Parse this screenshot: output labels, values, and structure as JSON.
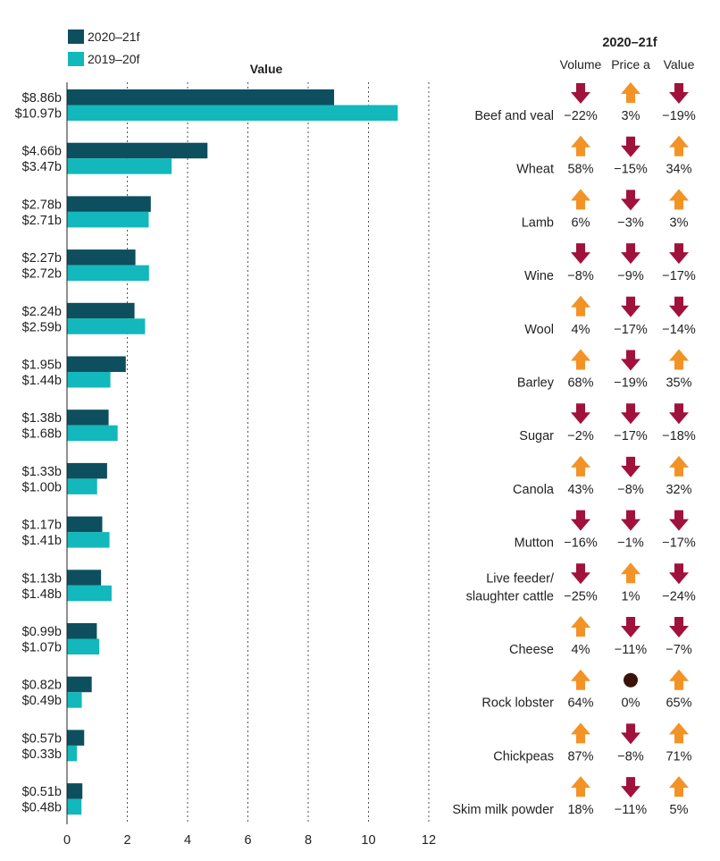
{
  "chart_data": {
    "type": "bar",
    "orientation": "horizontal",
    "title": "Value",
    "xlabel": "",
    "ylabel": "",
    "xlim": [
      0,
      12
    ],
    "xticks": [
      0,
      2,
      4,
      6,
      8,
      10,
      12
    ],
    "grid": true,
    "legend": {
      "position": "top-left",
      "entries": [
        {
          "name": "2020–21f",
          "color": "#0d4f5e"
        },
        {
          "name": "2019–20f",
          "color": "#12b8bb"
        }
      ]
    },
    "categories": [
      "Beef and veal",
      "Wheat",
      "Lamb",
      "Wine",
      "Wool",
      "Barley",
      "Sugar",
      "Canola",
      "Mutton",
      "Live feeder/ slaughter cattle",
      "Cheese",
      "Rock lobster",
      "Chickpeas",
      "Skim milk powder"
    ],
    "series": [
      {
        "name": "2020–21f",
        "color": "#0d4f5e",
        "values": [
          8.86,
          4.66,
          2.78,
          2.27,
          2.24,
          1.95,
          1.38,
          1.33,
          1.17,
          1.13,
          0.99,
          0.82,
          0.57,
          0.51
        ],
        "labels": [
          "$8.86b",
          "$4.66b",
          "$2.78b",
          "$2.27b",
          "$2.24b",
          "$1.95b",
          "$1.38b",
          "$1.33b",
          "$1.17b",
          "$1.13b",
          "$0.99b",
          "$0.82b",
          "$0.57b",
          "$0.51b"
        ]
      },
      {
        "name": "2019–20f",
        "color": "#12b8bb",
        "values": [
          10.97,
          3.47,
          2.71,
          2.72,
          2.59,
          1.44,
          1.68,
          1.0,
          1.41,
          1.48,
          1.07,
          0.49,
          0.33,
          0.48
        ],
        "labels": [
          "$10.97b",
          "$3.47b",
          "$2.71b",
          "$2.72b",
          "$2.59b",
          "$1.44b",
          "$1.68b",
          "$1.00b",
          "$1.41b",
          "$1.48b",
          "$1.07b",
          "$0.49b",
          "$0.33b",
          "$0.48b"
        ]
      }
    ],
    "table": {
      "title": "2020–21f",
      "headers": [
        "Volume",
        "Price a",
        "Value"
      ],
      "rows": [
        {
          "product": "Beef and veal",
          "cells": [
            {
              "text": "−22%",
              "dir": "down"
            },
            {
              "text": "3%",
              "dir": "up"
            },
            {
              "text": "−19%",
              "dir": "down"
            }
          ]
        },
        {
          "product": "Wheat",
          "cells": [
            {
              "text": "58%",
              "dir": "up"
            },
            {
              "text": "−15%",
              "dir": "down"
            },
            {
              "text": "34%",
              "dir": "up"
            }
          ]
        },
        {
          "product": "Lamb",
          "cells": [
            {
              "text": "6%",
              "dir": "up"
            },
            {
              "text": "−3%",
              "dir": "down"
            },
            {
              "text": "3%",
              "dir": "up"
            }
          ]
        },
        {
          "product": "Wine",
          "cells": [
            {
              "text": "−8%",
              "dir": "down"
            },
            {
              "text": "−9%",
              "dir": "down"
            },
            {
              "text": "−17%",
              "dir": "down"
            }
          ]
        },
        {
          "product": "Wool",
          "cells": [
            {
              "text": "4%",
              "dir": "up"
            },
            {
              "text": "−17%",
              "dir": "down"
            },
            {
              "text": "−14%",
              "dir": "down"
            }
          ]
        },
        {
          "product": "Barley",
          "cells": [
            {
              "text": "68%",
              "dir": "up"
            },
            {
              "text": "−19%",
              "dir": "down"
            },
            {
              "text": "35%",
              "dir": "up"
            }
          ]
        },
        {
          "product": "Sugar",
          "cells": [
            {
              "text": "−2%",
              "dir": "down"
            },
            {
              "text": "−17%",
              "dir": "down"
            },
            {
              "text": "−18%",
              "dir": "down"
            }
          ]
        },
        {
          "product": "Canola",
          "cells": [
            {
              "text": "43%",
              "dir": "up"
            },
            {
              "text": "−8%",
              "dir": "down"
            },
            {
              "text": "32%",
              "dir": "up"
            }
          ]
        },
        {
          "product": "Mutton",
          "cells": [
            {
              "text": "−16%",
              "dir": "down"
            },
            {
              "text": "−1%",
              "dir": "down"
            },
            {
              "text": "−17%",
              "dir": "down"
            }
          ]
        },
        {
          "product": "Live feeder/ slaughter cattle",
          "cells": [
            {
              "text": "−25%",
              "dir": "down"
            },
            {
              "text": "1%",
              "dir": "up"
            },
            {
              "text": "−24%",
              "dir": "down"
            }
          ]
        },
        {
          "product": "Cheese",
          "cells": [
            {
              "text": "4%",
              "dir": "up"
            },
            {
              "text": "−11%",
              "dir": "down"
            },
            {
              "text": "−7%",
              "dir": "down"
            }
          ]
        },
        {
          "product": "Rock lobster",
          "cells": [
            {
              "text": "64%",
              "dir": "up"
            },
            {
              "text": "0%",
              "dir": "flat"
            },
            {
              "text": "65%",
              "dir": "up"
            }
          ]
        },
        {
          "product": "Chickpeas",
          "cells": [
            {
              "text": "87%",
              "dir": "up"
            },
            {
              "text": "−8%",
              "dir": "down"
            },
            {
              "text": "71%",
              "dir": "up"
            }
          ]
        },
        {
          "product": "Skim milk powder",
          "cells": [
            {
              "text": "18%",
              "dir": "up"
            },
            {
              "text": "−11%",
              "dir": "down"
            },
            {
              "text": "5%",
              "dir": "up"
            }
          ]
        }
      ]
    },
    "indicator_colors": {
      "up": "#f39325",
      "down": "#a0123c",
      "flat": "#3a1408"
    }
  }
}
